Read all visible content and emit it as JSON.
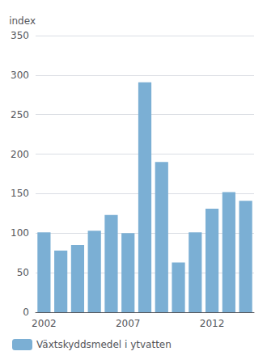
{
  "chart_data": {
    "type": "bar",
    "categories": [
      "2002",
      null,
      null,
      null,
      null,
      "2007",
      null,
      null,
      null,
      null,
      "2012",
      null,
      null
    ],
    "series": [
      {
        "name": "Växtskyddsmedel i ytvatten",
        "color": "#7bafd4",
        "values": [
          101,
          78,
          85,
          103,
          123,
          100,
          291,
          190,
          63,
          101,
          131,
          152,
          141
        ]
      }
    ],
    "ylabel": "index",
    "ylim": [
      0,
      350
    ],
    "yticks": [
      0,
      50,
      100,
      150,
      200,
      250,
      300,
      350
    ],
    "grid": true,
    "legend": "lower left"
  }
}
